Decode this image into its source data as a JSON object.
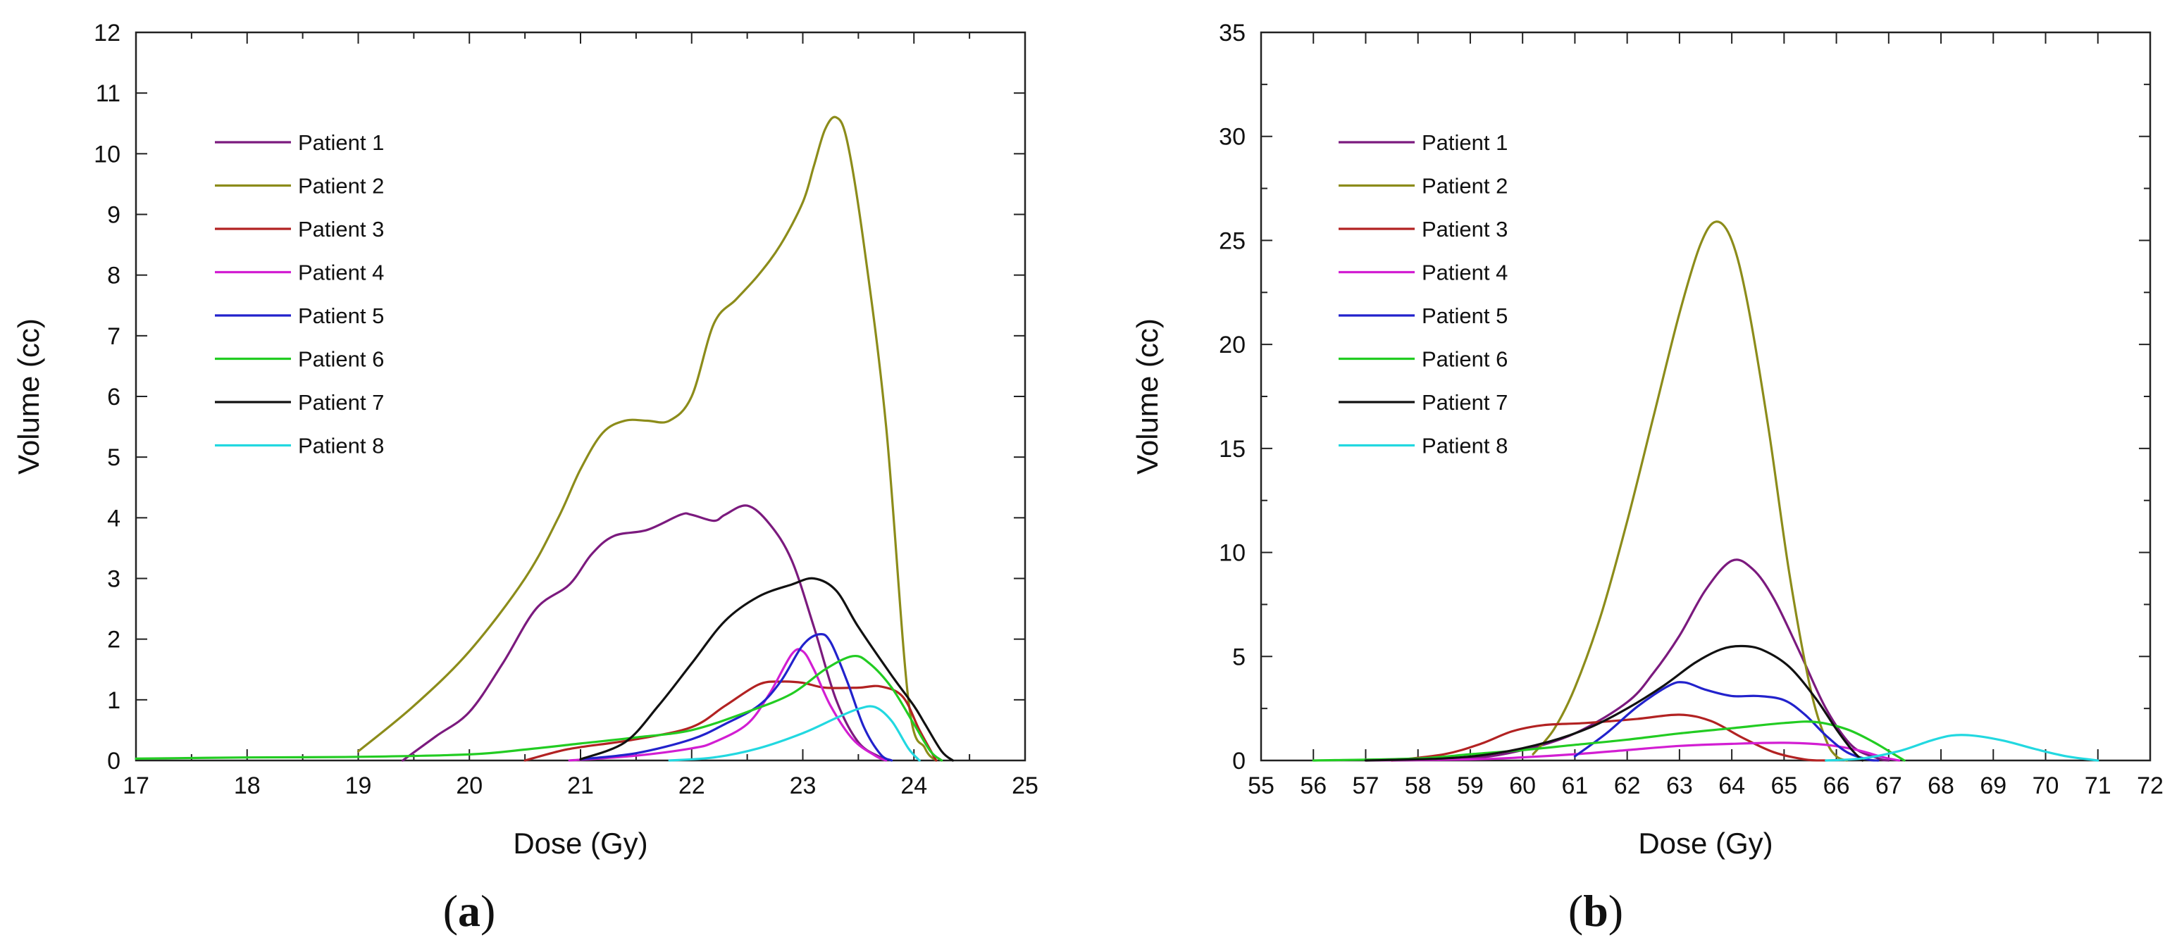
{
  "chart_data": [
    {
      "type": "line",
      "panel_label": {
        "open": "(",
        "letter": "a",
        "close": ")"
      },
      "xlabel": "Dose (Gy)",
      "ylabel": "Volume (cc)",
      "xlim": [
        17,
        25
      ],
      "ylim": [
        0,
        12
      ],
      "xticks": [
        17,
        18,
        19,
        20,
        21,
        22,
        23,
        24,
        25
      ],
      "yticks": [
        0,
        1,
        2,
        3,
        4,
        5,
        6,
        7,
        8,
        9,
        10,
        11,
        12
      ],
      "legend_position": "upper-left",
      "series": [
        {
          "name": "Patient 1",
          "color": "#7b1a7e",
          "points": [
            [
              19.4,
              0
            ],
            [
              19.7,
              0.4
            ],
            [
              20.0,
              0.8
            ],
            [
              20.3,
              1.6
            ],
            [
              20.6,
              2.5
            ],
            [
              20.9,
              2.9
            ],
            [
              21.1,
              3.4
            ],
            [
              21.3,
              3.7
            ],
            [
              21.6,
              3.8
            ],
            [
              21.9,
              4.05
            ],
            [
              22.0,
              4.05
            ],
            [
              22.2,
              3.95
            ],
            [
              22.3,
              4.05
            ],
            [
              22.5,
              4.2
            ],
            [
              22.7,
              3.9
            ],
            [
              22.9,
              3.3
            ],
            [
              23.1,
              2.2
            ],
            [
              23.3,
              1.0
            ],
            [
              23.5,
              0.3
            ],
            [
              23.7,
              0.05
            ],
            [
              23.75,
              0
            ]
          ]
        },
        {
          "name": "Patient 2",
          "color": "#8c8c1a",
          "points": [
            [
              19.0,
              0.15
            ],
            [
              19.5,
              0.9
            ],
            [
              20.0,
              1.8
            ],
            [
              20.5,
              3.0
            ],
            [
              20.8,
              4.0
            ],
            [
              21.0,
              4.8
            ],
            [
              21.2,
              5.4
            ],
            [
              21.4,
              5.6
            ],
            [
              21.6,
              5.6
            ],
            [
              21.8,
              5.6
            ],
            [
              22.0,
              6.0
            ],
            [
              22.2,
              7.2
            ],
            [
              22.4,
              7.6
            ],
            [
              22.6,
              8.0
            ],
            [
              22.8,
              8.5
            ],
            [
              23.0,
              9.2
            ],
            [
              23.1,
              9.8
            ],
            [
              23.2,
              10.4
            ],
            [
              23.3,
              10.6
            ],
            [
              23.4,
              10.2
            ],
            [
              23.55,
              8.5
            ],
            [
              23.75,
              5.5
            ],
            [
              23.95,
              1.0
            ],
            [
              24.1,
              0.2
            ],
            [
              24.2,
              0
            ]
          ]
        },
        {
          "name": "Patient 3",
          "color": "#b22222",
          "points": [
            [
              20.5,
              0
            ],
            [
              20.8,
              0.15
            ],
            [
              21.0,
              0.22
            ],
            [
              21.5,
              0.35
            ],
            [
              22.0,
              0.55
            ],
            [
              22.3,
              0.9
            ],
            [
              22.6,
              1.25
            ],
            [
              22.8,
              1.3
            ],
            [
              23.0,
              1.28
            ],
            [
              23.2,
              1.2
            ],
            [
              23.5,
              1.2
            ],
            [
              23.7,
              1.22
            ],
            [
              23.9,
              1.05
            ],
            [
              24.05,
              0.5
            ],
            [
              24.2,
              0
            ]
          ]
        },
        {
          "name": "Patient 4",
          "color": "#d21ed2",
          "points": [
            [
              20.9,
              0
            ],
            [
              21.5,
              0.08
            ],
            [
              22.0,
              0.2
            ],
            [
              22.2,
              0.3
            ],
            [
              22.5,
              0.6
            ],
            [
              22.7,
              1.1
            ],
            [
              22.9,
              1.75
            ],
            [
              23.0,
              1.8
            ],
            [
              23.1,
              1.5
            ],
            [
              23.25,
              0.9
            ],
            [
              23.45,
              0.35
            ],
            [
              23.65,
              0.08
            ],
            [
              23.75,
              0
            ]
          ]
        },
        {
          "name": "Patient 5",
          "color": "#2222cc",
          "points": [
            [
              21.0,
              0.02
            ],
            [
              21.5,
              0.12
            ],
            [
              22.0,
              0.35
            ],
            [
              22.3,
              0.6
            ],
            [
              22.6,
              0.9
            ],
            [
              22.8,
              1.3
            ],
            [
              23.0,
              1.9
            ],
            [
              23.15,
              2.08
            ],
            [
              23.25,
              1.95
            ],
            [
              23.4,
              1.3
            ],
            [
              23.55,
              0.55
            ],
            [
              23.7,
              0.1
            ],
            [
              23.8,
              0
            ]
          ]
        },
        {
          "name": "Patient 6",
          "color": "#22cc22",
          "points": [
            [
              17,
              0.03
            ],
            [
              18,
              0.05
            ],
            [
              19,
              0.06
            ],
            [
              20,
              0.1
            ],
            [
              20.5,
              0.18
            ],
            [
              21,
              0.28
            ],
            [
              21.5,
              0.38
            ],
            [
              22,
              0.5
            ],
            [
              22.5,
              0.8
            ],
            [
              22.9,
              1.1
            ],
            [
              23.2,
              1.5
            ],
            [
              23.45,
              1.72
            ],
            [
              23.6,
              1.6
            ],
            [
              23.8,
              1.2
            ],
            [
              24.0,
              0.6
            ],
            [
              24.15,
              0.15
            ],
            [
              24.25,
              0
            ]
          ]
        },
        {
          "name": "Patient 7",
          "color": "#111111",
          "points": [
            [
              21.0,
              0.02
            ],
            [
              21.4,
              0.3
            ],
            [
              21.7,
              0.9
            ],
            [
              22.0,
              1.6
            ],
            [
              22.3,
              2.3
            ],
            [
              22.6,
              2.7
            ],
            [
              22.9,
              2.9
            ],
            [
              23.1,
              3.0
            ],
            [
              23.3,
              2.8
            ],
            [
              23.5,
              2.2
            ],
            [
              23.8,
              1.4
            ],
            [
              24.0,
              0.9
            ],
            [
              24.1,
              0.6
            ],
            [
              24.25,
              0.15
            ],
            [
              24.35,
              0
            ]
          ]
        },
        {
          "name": "Patient 8",
          "color": "#22d8e0",
          "points": [
            [
              21.8,
              0
            ],
            [
              22.2,
              0.05
            ],
            [
              22.6,
              0.2
            ],
            [
              23.0,
              0.45
            ],
            [
              23.3,
              0.7
            ],
            [
              23.5,
              0.85
            ],
            [
              23.65,
              0.88
            ],
            [
              23.8,
              0.65
            ],
            [
              23.95,
              0.2
            ],
            [
              24.05,
              0
            ]
          ]
        }
      ]
    },
    {
      "type": "line",
      "panel_label": {
        "open": "(",
        "letter": "b",
        "close": ")"
      },
      "xlabel": "Dose (Gy)",
      "ylabel": "Volume (cc)",
      "xlim": [
        55,
        72
      ],
      "ylim": [
        0,
        35
      ],
      "xticks": [
        55,
        56,
        57,
        58,
        59,
        60,
        61,
        62,
        63,
        64,
        65,
        66,
        67,
        68,
        69,
        70,
        71,
        72
      ],
      "yticks": [
        0,
        5,
        10,
        15,
        20,
        25,
        30,
        35
      ],
      "legend_position": "upper-left",
      "series": [
        {
          "name": "Patient 1",
          "color": "#7b1a7e",
          "points": [
            [
              57.5,
              0
            ],
            [
              59,
              0.1
            ],
            [
              60,
              0.5
            ],
            [
              61,
              1.3
            ],
            [
              62,
              2.8
            ],
            [
              62.5,
              4.2
            ],
            [
              63,
              6.0
            ],
            [
              63.5,
              8.2
            ],
            [
              64,
              9.6
            ],
            [
              64.4,
              9.2
            ],
            [
              64.8,
              7.8
            ],
            [
              65.3,
              5.2
            ],
            [
              65.8,
              2.5
            ],
            [
              66.3,
              0.7
            ],
            [
              66.8,
              0.1
            ],
            [
              67,
              0
            ]
          ]
        },
        {
          "name": "Patient 2",
          "color": "#8c8c1a",
          "points": [
            [
              60.2,
              0.3
            ],
            [
              60.6,
              1.5
            ],
            [
              61,
              3.5
            ],
            [
              61.5,
              7.0
            ],
            [
              62,
              11.5
            ],
            [
              62.5,
              16.5
            ],
            [
              63,
              21.5
            ],
            [
              63.4,
              24.8
            ],
            [
              63.7,
              25.9
            ],
            [
              64,
              25.0
            ],
            [
              64.3,
              22.0
            ],
            [
              64.7,
              16.0
            ],
            [
              65.1,
              9.0
            ],
            [
              65.5,
              3.5
            ],
            [
              65.8,
              1.0
            ],
            [
              66,
              0.2
            ],
            [
              66.2,
              0
            ]
          ]
        },
        {
          "name": "Patient 3",
          "color": "#b22222",
          "points": [
            [
              57.5,
              0
            ],
            [
              58.5,
              0.3
            ],
            [
              59.2,
              0.8
            ],
            [
              59.8,
              1.4
            ],
            [
              60.4,
              1.7
            ],
            [
              61.2,
              1.8
            ],
            [
              62.2,
              2.0
            ],
            [
              63,
              2.2
            ],
            [
              63.6,
              1.9
            ],
            [
              64.2,
              1.1
            ],
            [
              64.8,
              0.4
            ],
            [
              65.4,
              0.05
            ],
            [
              65.8,
              0
            ]
          ]
        },
        {
          "name": "Patient 4",
          "color": "#d21ed2",
          "points": [
            [
              57,
              0
            ],
            [
              59,
              0.05
            ],
            [
              60,
              0.15
            ],
            [
              61,
              0.3
            ],
            [
              62,
              0.5
            ],
            [
              63,
              0.7
            ],
            [
              64,
              0.8
            ],
            [
              65,
              0.85
            ],
            [
              65.8,
              0.75
            ],
            [
              66.4,
              0.5
            ],
            [
              66.9,
              0.15
            ],
            [
              67.2,
              0
            ]
          ]
        },
        {
          "name": "Patient 5",
          "color": "#2222cc",
          "points": [
            [
              61.0,
              0.2
            ],
            [
              61.6,
              1.3
            ],
            [
              62.2,
              2.6
            ],
            [
              62.8,
              3.6
            ],
            [
              63.1,
              3.75
            ],
            [
              63.5,
              3.4
            ],
            [
              64,
              3.1
            ],
            [
              64.5,
              3.1
            ],
            [
              65,
              2.9
            ],
            [
              65.4,
              2.2
            ],
            [
              65.8,
              1.2
            ],
            [
              66.2,
              0.4
            ],
            [
              66.6,
              0.05
            ],
            [
              66.8,
              0
            ]
          ]
        },
        {
          "name": "Patient 6",
          "color": "#22cc22",
          "points": [
            [
              56,
              0
            ],
            [
              58,
              0.1
            ],
            [
              59,
              0.3
            ],
            [
              60,
              0.5
            ],
            [
              61,
              0.75
            ],
            [
              62,
              1.0
            ],
            [
              63,
              1.3
            ],
            [
              64,
              1.55
            ],
            [
              65,
              1.8
            ],
            [
              65.6,
              1.85
            ],
            [
              66.2,
              1.5
            ],
            [
              66.7,
              0.9
            ],
            [
              67.1,
              0.3
            ],
            [
              67.3,
              0
            ]
          ]
        },
        {
          "name": "Patient 7",
          "color": "#111111",
          "points": [
            [
              57,
              0
            ],
            [
              58.5,
              0.1
            ],
            [
              59.5,
              0.35
            ],
            [
              60.5,
              0.9
            ],
            [
              61.3,
              1.6
            ],
            [
              62,
              2.5
            ],
            [
              62.7,
              3.6
            ],
            [
              63.3,
              4.7
            ],
            [
              63.8,
              5.35
            ],
            [
              64.2,
              5.5
            ],
            [
              64.6,
              5.3
            ],
            [
              65.1,
              4.5
            ],
            [
              65.6,
              3.0
            ],
            [
              66,
              1.5
            ],
            [
              66.3,
              0.5
            ],
            [
              66.5,
              0
            ]
          ]
        },
        {
          "name": "Patient 8",
          "color": "#22d8e0",
          "points": [
            [
              65.8,
              0
            ],
            [
              66.5,
              0.1
            ],
            [
              67.2,
              0.45
            ],
            [
              67.8,
              0.95
            ],
            [
              68.2,
              1.2
            ],
            [
              68.6,
              1.2
            ],
            [
              69.2,
              0.95
            ],
            [
              69.8,
              0.55
            ],
            [
              70.4,
              0.2
            ],
            [
              71,
              0
            ]
          ]
        }
      ]
    }
  ]
}
